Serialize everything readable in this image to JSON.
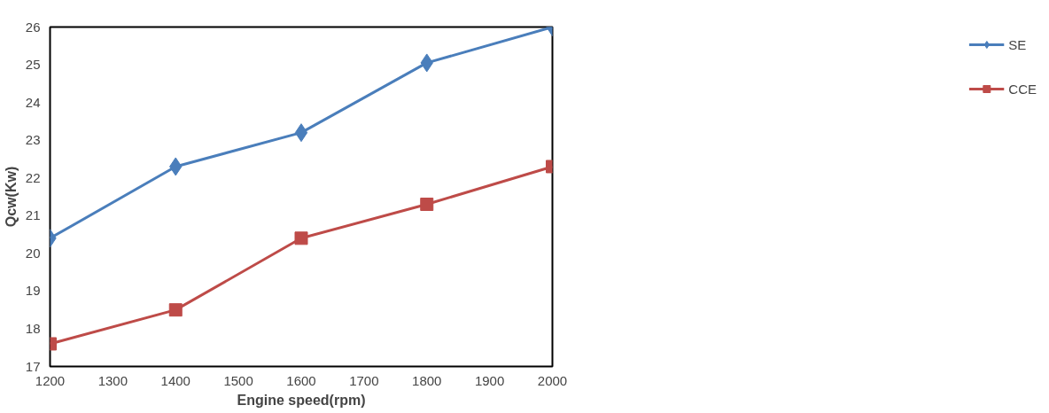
{
  "chart_data": {
    "type": "line",
    "xlabel": "Engine speed(rpm)",
    "ylabel": "Qcw(Kw)",
    "x": [
      1200,
      1400,
      1600,
      1800,
      2000
    ],
    "series": [
      {
        "name": "SE",
        "color": "#4a7ebb",
        "marker": "diamond",
        "values": [
          20.4,
          22.3,
          23.2,
          25.05,
          26
        ]
      },
      {
        "name": "CCE",
        "color": "#be4b48",
        "marker": "square",
        "values": [
          17.6,
          18.5,
          20.4,
          21.3,
          22.3
        ]
      }
    ],
    "xlim": [
      1200,
      2000
    ],
    "xticks": [
      1200,
      1300,
      1400,
      1500,
      1600,
      1700,
      1800,
      1900,
      2000
    ],
    "ylim": [
      17,
      26
    ],
    "yticks": [
      17,
      18,
      19,
      20,
      21,
      22,
      23,
      24,
      25,
      26
    ],
    "grid": false,
    "legend": "right",
    "line_style": "solid"
  }
}
